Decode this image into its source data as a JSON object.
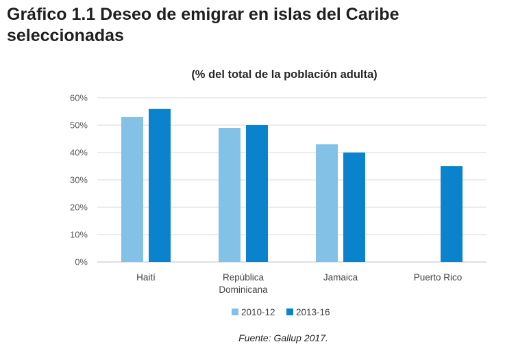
{
  "header": {
    "title_line1": "Gráfico 1.1 Deseo de emigrar en islas del Caribe",
    "title_line2": "seleccionadas"
  },
  "footer": {
    "source": "Fuente: Gallup 2017."
  },
  "chart_data": {
    "type": "bar",
    "title": "(% del total de la población adulta)",
    "xlabel": "",
    "ylabel": "",
    "ylim": [
      0,
      60
    ],
    "yticks": [
      0,
      10,
      20,
      30,
      40,
      50,
      60
    ],
    "ytick_labels": [
      "0%",
      "10%",
      "20%",
      "30%",
      "40%",
      "50%",
      "60%"
    ],
    "grid": true,
    "legend_position": "bottom",
    "categories": [
      [
        "Haití"
      ],
      [
        "República",
        "Dominicana"
      ],
      [
        "Jamaica"
      ],
      [
        "Puerto Rico"
      ]
    ],
    "series": [
      {
        "name": "2010-12",
        "color": "#84c1e7",
        "values": [
          53,
          49,
          43,
          null
        ]
      },
      {
        "name": "2013-16",
        "color": "#0a82cc",
        "values": [
          56,
          50,
          40,
          35
        ]
      }
    ]
  }
}
